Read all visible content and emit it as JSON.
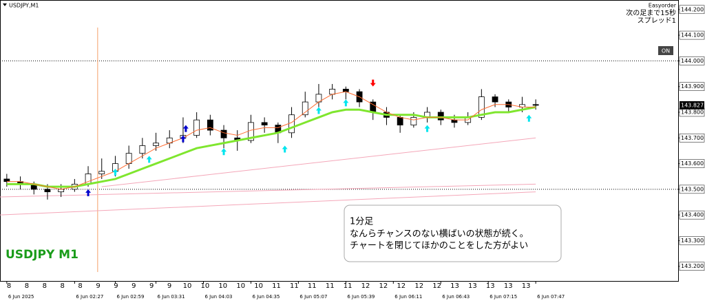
{
  "chart_data": {
    "type": "candlestick",
    "title": "USDJPY,M1",
    "watermark": "USDJPY M1",
    "panel": {
      "name": "Easyorder",
      "countdown": "次の足まで15秒",
      "spread": "スプレッド1",
      "button": "ON"
    },
    "comment": [
      "1分足",
      "なんらチャンスのない横ばいの状態が続く。",
      "チャートを閉じてほかのことをした方がよい"
    ],
    "xlim": [
      -0.5,
      49.5
    ],
    "xticks": [
      {
        "value": 0,
        "label": "6 Jun 2025"
      },
      {
        "value": 5,
        "label": "6 Jun 02:27"
      },
      {
        "value": 8,
        "label": "6 Jun 02:59"
      },
      {
        "value": 11,
        "label": "6 Jun 03:31"
      },
      {
        "value": 14.5,
        "label": "6 Jun 04:03"
      },
      {
        "value": 18,
        "label": "6 Jun 04:35"
      },
      {
        "value": 21.5,
        "label": "6 Jun 05:07"
      },
      {
        "value": 25,
        "label": "6 Jun 05:39"
      },
      {
        "value": 28.5,
        "label": "6 Jun 06:11"
      },
      {
        "value": 32,
        "label": "6 Jun 06:43"
      },
      {
        "value": 35.5,
        "label": "6 Jun 07:15"
      },
      {
        "value": 39,
        "label": "6 Jun 07:47"
      }
    ],
    "hour_labels": [
      8,
      8,
      8,
      8,
      8,
      9,
      9,
      9,
      9,
      9,
      10,
      10,
      10,
      10,
      10,
      11,
      11,
      11,
      11,
      11,
      12,
      12,
      12,
      12,
      12,
      13,
      13,
      13,
      13,
      13
    ],
    "ylim": [
      143.143,
      144.237
    ],
    "yticks": [
      {
        "value": 143.2,
        "label": "143.200"
      },
      {
        "value": 143.3,
        "label": "143.300"
      },
      {
        "value": 143.4,
        "label": "143.400"
      },
      {
        "value": 143.5,
        "label": "143.500"
      },
      {
        "value": 143.6,
        "label": "143.600"
      },
      {
        "value": 143.7,
        "label": "143.700"
      },
      {
        "value": 143.8,
        "label": "143.800"
      },
      {
        "value": 143.9,
        "label": "143.900"
      },
      {
        "value": 144,
        "label": "144.000"
      },
      {
        "value": 144.1,
        "label": "144.100"
      },
      {
        "value": 144.2,
        "label": "144.200"
      }
    ],
    "current_price": 143.827,
    "levels": [
      144.0,
      143.5
    ],
    "separator_x": 6.7,
    "open": [
      143.54,
      143.53,
      143.52,
      143.5,
      143.49,
      143.5,
      143.52,
      143.56,
      143.57,
      143.6,
      143.64,
      143.67,
      143.68,
      143.7,
      143.71,
      143.77,
      143.73,
      143.7,
      143.69,
      143.76,
      143.75,
      143.72,
      143.79,
      143.84,
      143.87,
      143.89,
      143.88,
      143.84,
      143.8,
      143.78,
      143.75,
      143.78,
      143.8,
      143.77,
      143.76,
      143.78,
      143.86,
      143.84,
      143.82,
      143.83
    ],
    "high": [
      143.56,
      143.55,
      143.53,
      143.52,
      143.52,
      143.54,
      143.59,
      143.62,
      143.63,
      143.67,
      143.7,
      143.72,
      143.73,
      143.78,
      143.8,
      143.79,
      143.75,
      143.73,
      143.79,
      143.78,
      143.76,
      143.82,
      143.88,
      143.91,
      143.91,
      143.9,
      143.89,
      143.85,
      143.82,
      143.79,
      143.8,
      143.82,
      143.81,
      143.79,
      143.8,
      143.89,
      143.87,
      143.85,
      143.86,
      143.85
    ],
    "low": [
      143.51,
      143.5,
      143.48,
      143.46,
      143.47,
      143.49,
      143.51,
      143.54,
      143.55,
      143.58,
      143.62,
      143.65,
      143.66,
      143.68,
      143.7,
      143.71,
      143.66,
      143.65,
      143.68,
      143.72,
      143.68,
      143.7,
      143.78,
      143.82,
      143.85,
      143.85,
      143.82,
      143.77,
      143.75,
      143.72,
      143.74,
      143.76,
      143.75,
      143.74,
      143.75,
      143.77,
      143.82,
      143.8,
      143.8,
      143.81
    ],
    "close": [
      143.53,
      143.52,
      143.5,
      143.49,
      143.5,
      143.52,
      143.56,
      143.57,
      143.6,
      143.64,
      143.67,
      143.68,
      143.7,
      143.71,
      143.77,
      143.73,
      143.7,
      143.69,
      143.76,
      143.75,
      143.72,
      143.79,
      143.84,
      143.87,
      143.89,
      143.88,
      143.84,
      143.8,
      143.78,
      143.75,
      143.78,
      143.8,
      143.77,
      143.76,
      143.78,
      143.86,
      143.84,
      143.82,
      143.83,
      143.827
    ],
    "series": [
      {
        "color": "#7fe62e",
        "width": 3,
        "values": [
          143.52,
          143.52,
          143.52,
          143.51,
          143.51,
          143.51,
          143.52,
          143.53,
          143.54,
          143.56,
          143.58,
          143.6,
          143.62,
          143.64,
          143.66,
          143.67,
          143.68,
          143.69,
          143.7,
          143.71,
          143.72,
          143.74,
          143.76,
          143.78,
          143.8,
          143.81,
          143.81,
          143.8,
          143.79,
          143.79,
          143.79,
          143.78,
          143.78,
          143.78,
          143.78,
          143.79,
          143.8,
          143.8,
          143.81,
          143.82
        ]
      },
      {
        "color": "#ff6a2e",
        "width": 1,
        "values": [
          143.53,
          143.53,
          143.52,
          143.51,
          143.5,
          143.51,
          143.53,
          143.55,
          143.57,
          143.6,
          143.63,
          143.66,
          143.68,
          143.7,
          143.73,
          143.74,
          143.72,
          143.71,
          143.73,
          143.74,
          143.74,
          143.76,
          143.8,
          143.84,
          143.87,
          143.88,
          143.86,
          143.83,
          143.8,
          143.78,
          143.77,
          143.78,
          143.78,
          143.77,
          143.77,
          143.81,
          143.83,
          143.83,
          143.82,
          143.82
        ]
      }
    ],
    "bands": [
      {
        "color": "#f4a6b8",
        "x": [
          7,
          39
        ],
        "values": [
          143.51,
          143.7
        ]
      },
      {
        "color": "#f4a6b8",
        "x": [
          -0.5,
          39
        ],
        "values": [
          143.47,
          143.52
        ]
      },
      {
        "color": "#f4a6b8",
        "x": [
          -0.5,
          39
        ],
        "values": [
          143.4,
          143.49
        ]
      }
    ],
    "signals": [
      {
        "x": 6,
        "value": 143.5,
        "color": "#0000cc",
        "direction": "up"
      },
      {
        "x": 8,
        "value": 143.58,
        "color": "#00e5ee",
        "direction": "up"
      },
      {
        "x": 10.5,
        "value": 143.63,
        "color": "#00e5ee",
        "direction": "up"
      },
      {
        "x": 13,
        "value": 143.71,
        "color": "#0000cc",
        "direction": "up"
      },
      {
        "x": 13.2,
        "value": 143.75,
        "color": "#0000cc",
        "direction": "up"
      },
      {
        "x": 16,
        "value": 143.66,
        "color": "#00e5ee",
        "direction": "up"
      },
      {
        "x": 20.5,
        "value": 143.67,
        "color": "#00e5ee",
        "direction": "up"
      },
      {
        "x": 23,
        "value": 143.82,
        "color": "#00e5ee",
        "direction": "up"
      },
      {
        "x": 25,
        "value": 143.85,
        "color": "#00e5ee",
        "direction": "up"
      },
      {
        "x": 27,
        "value": 143.9,
        "color": "#ff0000",
        "direction": "down"
      },
      {
        "x": 31,
        "value": 143.75,
        "color": "#00e5ee",
        "direction": "up"
      },
      {
        "x": 38.5,
        "value": 143.79,
        "color": "#00e5ee",
        "direction": "up"
      }
    ]
  }
}
